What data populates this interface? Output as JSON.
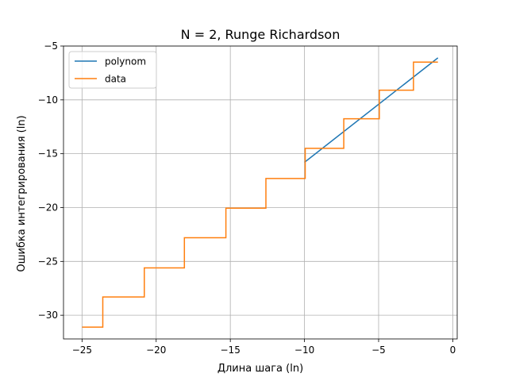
{
  "chart_data": {
    "type": "line",
    "title": "N = 2, Runge Richardson",
    "xlabel": "Длина шага (ln)",
    "ylabel": "Ошибка интегрирования (ln)",
    "xlim": [
      -26.25,
      0.3
    ],
    "ylim": [
      -32.2,
      -5.0
    ],
    "xticks": [
      -25,
      -20,
      -15,
      -10,
      -5,
      0
    ],
    "xtick_labels": [
      "−25",
      "−20",
      "−15",
      "−10",
      "−5",
      "0"
    ],
    "yticks": [
      -30,
      -25,
      -20,
      -15,
      -10,
      -5
    ],
    "ytick_labels": [
      "−30",
      "−25",
      "−20",
      "−15",
      "−10",
      "−5"
    ],
    "grid": true,
    "legend_position": "upper-left",
    "series": [
      {
        "name": "polynom",
        "color": "#1f77b4",
        "x": [
          -10.0,
          -1.0
        ],
        "y": [
          -15.8,
          -6.1
        ]
      },
      {
        "name": "data",
        "color": "#ff7f0e",
        "step": true,
        "x": [
          -25.0,
          -23.6,
          -23.6,
          -20.8,
          -20.8,
          -18.1,
          -18.1,
          -15.3,
          -15.3,
          -12.6,
          -12.6,
          -9.95,
          -9.95,
          -7.35,
          -7.35,
          -4.95,
          -4.95,
          -2.65,
          -2.65,
          -1.0
        ],
        "y": [
          -31.1,
          -31.1,
          -28.3,
          -28.3,
          -25.6,
          -25.6,
          -22.8,
          -22.8,
          -20.05,
          -20.05,
          -17.3,
          -17.3,
          -14.5,
          -14.5,
          -11.75,
          -11.75,
          -9.1,
          -9.1,
          -6.5,
          -6.5
        ]
      }
    ]
  }
}
